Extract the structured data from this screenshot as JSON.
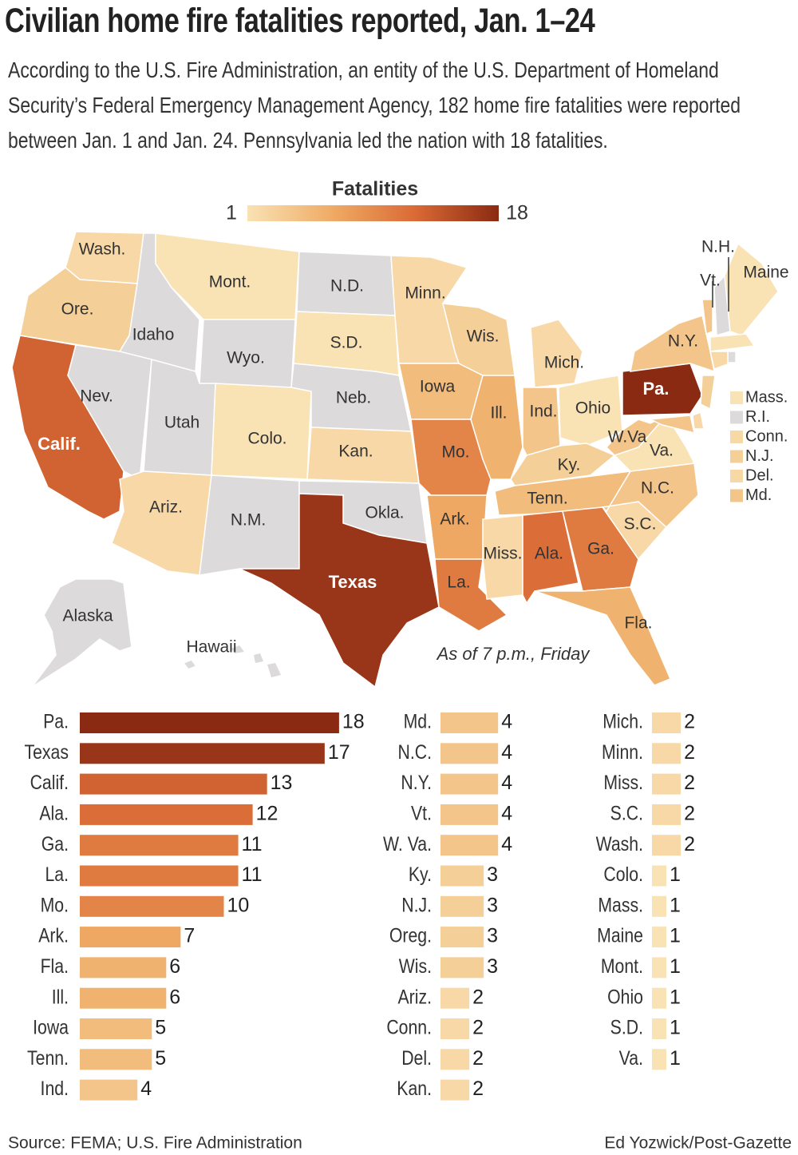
{
  "chart_data": {
    "type": "bar",
    "title": "Civilian home fire fatalities reported, Jan. 1–24",
    "subtitle": "According to the U.S. Fire Administration, an entity of the U.S. Department of Homeland Security’s Federal Emergency Management Agency, 182 home fire fatalities were reported between Jan. 1 and Jan. 24. Pennsylvania led the nation with 18 fatalities.",
    "legend_title": "Fatalities",
    "legend_min": 1,
    "legend_max": 18,
    "color_scale": [
      "#f9e2b4",
      "#efac66",
      "#da6a35",
      "#8b2a12"
    ],
    "no_data_color": "#dcdadb",
    "categories": [
      "Pa.",
      "Texas",
      "Calif.",
      "Ala.",
      "Ga.",
      "La.",
      "Mo.",
      "Ark.",
      "Fla.",
      "Ill.",
      "Iowa",
      "Tenn.",
      "Ind.",
      "Md.",
      "N.C.",
      "N.Y.",
      "Vt.",
      "W. Va.",
      "Ky.",
      "N.J.",
      "Oreg.",
      "Wis.",
      "Ariz.",
      "Conn.",
      "Del.",
      "Kan.",
      "Mich.",
      "Minn.",
      "Miss.",
      "S.C.",
      "Wash.",
      "Colo.",
      "Mass.",
      "Maine",
      "Mont.",
      "Ohio",
      "S.D.",
      "Va."
    ],
    "values": [
      18,
      17,
      13,
      12,
      11,
      11,
      10,
      7,
      6,
      6,
      5,
      5,
      4,
      4,
      4,
      4,
      4,
      4,
      3,
      3,
      3,
      3,
      2,
      2,
      2,
      2,
      2,
      2,
      2,
      2,
      2,
      1,
      1,
      1,
      1,
      1,
      1,
      1
    ],
    "map_labels": [
      "Wash.",
      "Ore.",
      "Calif.",
      "Idaho",
      "Nev.",
      "Mont.",
      "Wyo.",
      "Utah",
      "Ariz.",
      "Colo.",
      "N.M.",
      "N.D.",
      "S.D.",
      "Neb.",
      "Kan.",
      "Okla.",
      "Texas",
      "Minn.",
      "Iowa",
      "Mo.",
      "Ark.",
      "La.",
      "Wis.",
      "Ill.",
      "Mich.",
      "Ind.",
      "Ohio",
      "Ky.",
      "Tenn.",
      "Miss.",
      "Ala.",
      "Ga.",
      "Fla.",
      "S.C.",
      "N.C.",
      "Va.",
      "W.Va",
      "Pa.",
      "N.Y.",
      "Vt.",
      "N.H.",
      "Maine",
      "Alaska",
      "Hawaii"
    ],
    "side_labels": [
      "Mass.",
      "R.I.",
      "Conn.",
      "N.J.",
      "Del.",
      "Md."
    ],
    "note": "As of 7 p.m., Friday",
    "source": "Source: FEMA; U.S. Fire Administration",
    "credit": "Ed Yozwick/Post-Gazette"
  }
}
